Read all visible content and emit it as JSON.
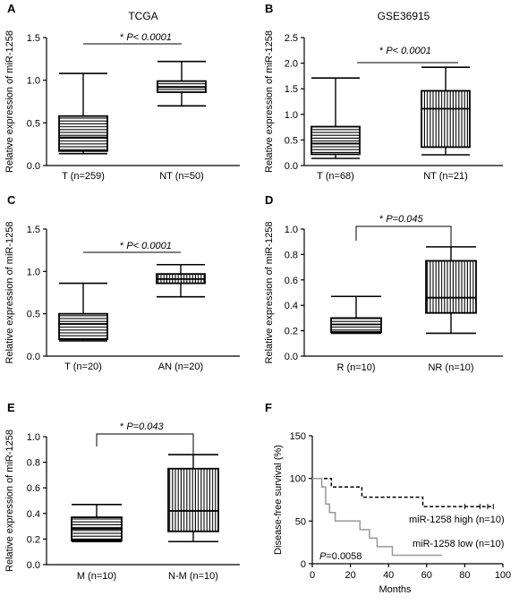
{
  "colors": {
    "ink": "#000000",
    "km_low": "#999999"
  },
  "chart_data": [
    {
      "panel": "A",
      "type": "box",
      "title": "TCGA",
      "ylabel": "Relative expression of miR-1258",
      "ylim": [
        0,
        1.5
      ],
      "yticks": [
        "0.0",
        "0.5",
        "1.0",
        "1.5"
      ],
      "categories": [
        "T (n=259)",
        "NT (n=50)"
      ],
      "boxes": [
        {
          "min": 0.14,
          "q1": 0.17,
          "median": 0.33,
          "q3": 0.58,
          "max": 1.08,
          "pattern": "horizontal"
        },
        {
          "min": 0.7,
          "q1": 0.86,
          "median": 0.92,
          "q3": 0.99,
          "max": 1.22,
          "pattern": "horizontal"
        }
      ],
      "annotation": {
        "star": "* ",
        "text": "P< 0.0001"
      }
    },
    {
      "panel": "B",
      "type": "box",
      "title": "GSE36915",
      "ylabel": "Relative expression of miR-1258",
      "ylim": [
        0,
        2.5
      ],
      "yticks": [
        "0.0",
        "0.5",
        "1.0",
        "1.5",
        "2.0",
        "2.5"
      ],
      "categories": [
        "T (n=68)",
        "NT (n=21)"
      ],
      "boxes": [
        {
          "min": 0.14,
          "q1": 0.22,
          "median": 0.43,
          "q3": 0.76,
          "max": 1.71,
          "pattern": "horizontal"
        },
        {
          "min": 0.21,
          "q1": 0.36,
          "median": 1.11,
          "q3": 1.46,
          "max": 1.92,
          "pattern": "vertical"
        }
      ],
      "annotation": {
        "star": "* ",
        "text": "P< 0.0001"
      }
    },
    {
      "panel": "C",
      "type": "box",
      "title": "",
      "ylabel": "Relative expression of miR-1258",
      "ylim": [
        0,
        1.5
      ],
      "yticks": [
        "0.0",
        "0.5",
        "1.0",
        "1.5"
      ],
      "categories": [
        "T (n=20)",
        "AN (n=20)"
      ],
      "boxes": [
        {
          "min": 0.18,
          "q1": 0.2,
          "median": 0.38,
          "q3": 0.5,
          "max": 0.86,
          "pattern": "horizontal"
        },
        {
          "min": 0.7,
          "q1": 0.86,
          "median": 0.91,
          "q3": 0.97,
          "max": 1.08,
          "pattern": "vertical"
        }
      ],
      "annotation": {
        "star": "* ",
        "text": "P< 0.0001"
      }
    },
    {
      "panel": "D",
      "type": "box",
      "title": "",
      "ylabel": "Relative expression of miR-1258",
      "ylim": [
        0,
        1.0
      ],
      "yticks": [
        "0.0",
        "0.2",
        "0.4",
        "0.6",
        "0.8",
        "1.0"
      ],
      "categories": [
        "R (n=10)",
        "NR (n=10)"
      ],
      "boxes": [
        {
          "min": 0.18,
          "q1": 0.19,
          "median": 0.25,
          "q3": 0.3,
          "max": 0.47,
          "pattern": "horizontal"
        },
        {
          "min": 0.18,
          "q1": 0.34,
          "median": 0.46,
          "q3": 0.75,
          "max": 0.86,
          "pattern": "vertical"
        }
      ],
      "annotation": {
        "star": "* ",
        "text": "P=0.045"
      }
    },
    {
      "panel": "E",
      "type": "box",
      "title": "",
      "ylabel": "Relative expression of miR-1258",
      "ylim": [
        0,
        1.0
      ],
      "yticks": [
        "0.0",
        "0.2",
        "0.4",
        "0.6",
        "0.8",
        "1.0"
      ],
      "categories": [
        "M (n=10)",
        "N-M (n=10)"
      ],
      "boxes": [
        {
          "min": 0.18,
          "q1": 0.19,
          "median": 0.28,
          "q3": 0.37,
          "max": 0.47,
          "pattern": "horizontal"
        },
        {
          "min": 0.18,
          "q1": 0.26,
          "median": 0.42,
          "q3": 0.75,
          "max": 0.86,
          "pattern": "vertical"
        }
      ],
      "annotation": {
        "star": "* ",
        "text": "P=0.043"
      }
    },
    {
      "panel": "F",
      "type": "line",
      "title": "",
      "ylabel": "Disease-free survival (%)",
      "xlabel": "Months",
      "xlim": [
        0,
        100
      ],
      "ylim": [
        0,
        150
      ],
      "xticks": [
        "0",
        "20",
        "40",
        "60",
        "80",
        "100"
      ],
      "yticks": [
        "0",
        "50",
        "100",
        "150"
      ],
      "series": [
        {
          "name": "miR-1258 high (n=10)",
          "style": "dashed",
          "steps": [
            [
              0,
              100
            ],
            [
              10,
              100
            ],
            [
              10,
              90
            ],
            [
              26,
              90
            ],
            [
              26,
              78
            ],
            [
              58,
              78
            ],
            [
              58,
              67
            ],
            [
              95,
              67
            ]
          ],
          "censor": [
            [
              80,
              67
            ],
            [
              88,
              67
            ],
            [
              92,
              67
            ],
            [
              95,
              67
            ]
          ]
        },
        {
          "name": "miR-1258 low (n=10)",
          "style": "solid",
          "steps": [
            [
              0,
              100
            ],
            [
              5,
              100
            ],
            [
              5,
              90
            ],
            [
              7,
              90
            ],
            [
              7,
              70
            ],
            [
              9,
              70
            ],
            [
              9,
              60
            ],
            [
              12,
              60
            ],
            [
              12,
              50
            ],
            [
              25,
              50
            ],
            [
              25,
              40
            ],
            [
              30,
              40
            ],
            [
              30,
              30
            ],
            [
              34,
              30
            ],
            [
              34,
              20
            ],
            [
              42,
              20
            ],
            [
              42,
              10
            ],
            [
              68,
              10
            ]
          ],
          "censor": []
        }
      ],
      "annotation": {
        "prefix": "P",
        "value": "=0.0058"
      }
    }
  ]
}
